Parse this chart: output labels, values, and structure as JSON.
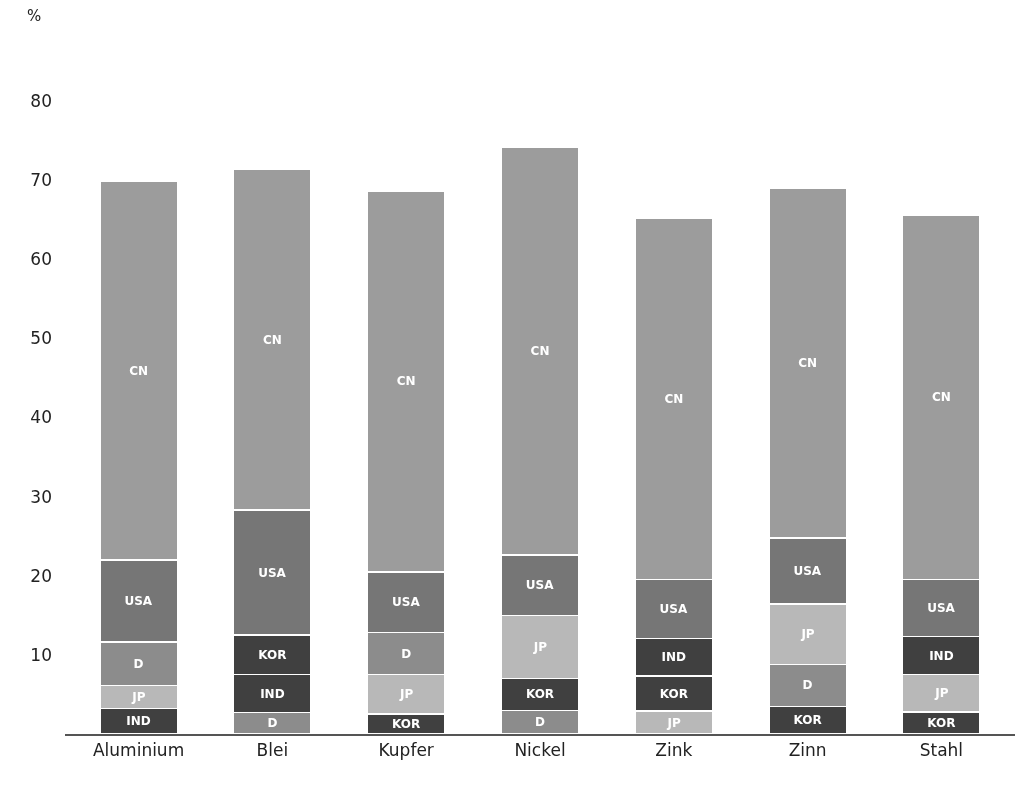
{
  "chart_data": {
    "type": "bar",
    "stacked": true,
    "ylabel": "%",
    "categories": [
      "Aluminium",
      "Blei",
      "Kupfer",
      "Nickel",
      "Zink",
      "Zinn",
      "Stahl"
    ],
    "series": [
      {
        "colors": [
          "#404040",
          "#8c8c8c",
          "#404040",
          "#8c8c8c",
          "#b8b8b8",
          "#404040",
          "#404040"
        ],
        "values": [
          3.2,
          2.7,
          2.5,
          3.0,
          2.9,
          3.5,
          2.8
        ],
        "value_labels": [
          "IND",
          "D",
          "KOR",
          "D",
          "JP",
          "KOR",
          "KOR"
        ]
      },
      {
        "colors": [
          "#b8b8b8",
          "#404040",
          "#b8b8b8",
          "#404040",
          "#404040",
          "#8c8c8c",
          "#b8b8b8"
        ],
        "values": [
          2.9,
          4.8,
          5.0,
          4.0,
          4.4,
          5.3,
          4.7
        ],
        "value_labels": [
          "JP",
          "IND",
          "JP",
          "KOR",
          "KOR",
          "D",
          "JP"
        ]
      },
      {
        "colors": [
          "#8c8c8c",
          "#404040",
          "#8c8c8c",
          "#b8b8b8",
          "#404040",
          "#b8b8b8",
          "#404040"
        ],
        "values": [
          5.5,
          5.0,
          5.3,
          8.0,
          4.8,
          7.6,
          4.8
        ],
        "value_labels": [
          "D",
          "KOR",
          "D",
          "JP",
          "IND",
          "JP",
          "IND"
        ]
      },
      {
        "color": "#767676",
        "values": [
          10.4,
          15.8,
          7.7,
          7.6,
          7.4,
          8.4,
          7.2
        ],
        "value_labels": [
          "USA",
          "USA",
          "USA",
          "USA",
          "USA",
          "USA",
          "USA"
        ]
      },
      {
        "color": "#9c9c9c",
        "values": [
          47.8,
          43.1,
          48.1,
          51.6,
          45.7,
          44.2,
          46.1
        ],
        "value_labels": [
          "CN",
          "CN",
          "CN",
          "CN",
          "CN",
          "CN",
          "CN"
        ]
      }
    ],
    "ylim": [
      0,
      80
    ],
    "yticks": [
      10,
      20,
      30,
      40,
      50,
      60,
      70,
      80
    ]
  }
}
